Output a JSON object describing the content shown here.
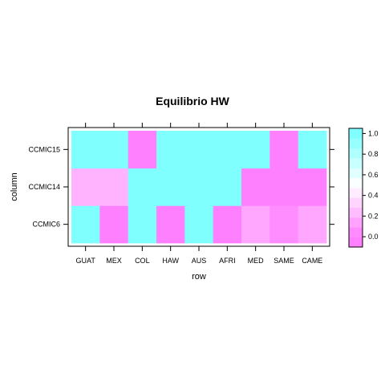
{
  "chart_data": {
    "type": "heatmap",
    "title": "Equilibrio HW",
    "xlabel": "row",
    "ylabel": "column",
    "x_categories": [
      "GUAT",
      "MEX",
      "COL",
      "HAW",
      "AUS",
      "AFRI",
      "MED",
      "SAME",
      "CAME"
    ],
    "y_categories": [
      "CCMIC6",
      "CCMIC14",
      "CCMIC15"
    ],
    "values": [
      [
        1.0,
        0.0,
        1.0,
        0.0,
        1.0,
        0.0,
        0.15,
        0.05,
        0.15
      ],
      [
        0.2,
        0.2,
        1.0,
        1.0,
        1.0,
        1.0,
        0.0,
        0.0,
        0.0
      ],
      [
        1.0,
        1.0,
        0.0,
        1.0,
        1.0,
        1.0,
        1.0,
        0.0,
        1.0
      ]
    ],
    "colorbar": {
      "range": [
        -0.1,
        1.05
      ],
      "ticks": [
        "0.0",
        "0.2",
        "0.4",
        "0.6",
        "0.8",
        "1.0"
      ],
      "low_color": "#ff80ff",
      "high_color": "#80ffff"
    }
  }
}
